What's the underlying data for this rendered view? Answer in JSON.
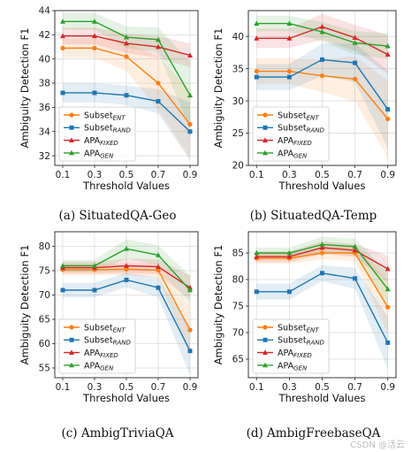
{
  "colors": {
    "Subset_ENT": "#ff7f0e",
    "Subset_RAND": "#1f77b4",
    "APA_FIXED": "#d62728",
    "APA_GEN": "#2ca02c"
  },
  "legend_entries": [
    {
      "key": "Subset_ENT",
      "base": "Subset",
      "sub": "ENT",
      "marker": "circle"
    },
    {
      "key": "Subset_RAND",
      "base": "Subset",
      "sub": "RAND",
      "marker": "square"
    },
    {
      "key": "APA_FIXED",
      "base": "APA",
      "sub": "FIXED",
      "marker": "triangle"
    },
    {
      "key": "APA_GEN",
      "base": "APA",
      "sub": "GEN",
      "marker": "triangle"
    }
  ],
  "watermark": "CSDN @活云",
  "chart_data": [
    {
      "type": "line",
      "caption": "(a) SituatedQA-Geo",
      "xlabel": "Threshold Values",
      "ylabel": "Ambiguity Detection F1",
      "x": [
        0.1,
        0.3,
        0.5,
        0.7,
        0.9
      ],
      "ylim": [
        31.2,
        44
      ],
      "yticks": [
        32,
        34,
        36,
        38,
        40,
        42,
        44
      ],
      "grid": true,
      "legend_position": "lower-left",
      "series": [
        {
          "key": "Subset_ENT",
          "values": [
            40.9,
            40.9,
            40.2,
            38.0,
            34.6
          ],
          "band": [
            0.8,
            0.8,
            1.2,
            2.2,
            2.8
          ]
        },
        {
          "key": "Subset_RAND",
          "values": [
            37.2,
            37.2,
            37.0,
            36.5,
            34.0
          ],
          "band": [
            0.8,
            0.8,
            0.8,
            1.0,
            2.4
          ]
        },
        {
          "key": "APA_FIXED",
          "values": [
            41.9,
            41.9,
            41.3,
            41.0,
            40.3
          ],
          "band": [
            0.7,
            0.7,
            0.8,
            0.9,
            1.0
          ]
        },
        {
          "key": "APA_GEN",
          "values": [
            43.1,
            43.1,
            41.8,
            41.6,
            37.0
          ],
          "band": [
            0.7,
            0.7,
            0.9,
            1.0,
            2.8
          ]
        }
      ]
    },
    {
      "type": "line",
      "caption": "(b) SituatedQA-Temp",
      "xlabel": "Threshold Values",
      "ylabel": "Ambiguity Detection F1",
      "x": [
        0.1,
        0.3,
        0.5,
        0.7,
        0.9
      ],
      "ylim": [
        20,
        44
      ],
      "yticks": [
        20,
        25,
        30,
        35,
        40
      ],
      "grid": true,
      "legend_position": "lower-left",
      "series": [
        {
          "key": "Subset_ENT",
          "values": [
            34.6,
            34.6,
            33.9,
            33.4,
            27.2
          ],
          "band": [
            2.0,
            2.0,
            2.5,
            3.5,
            6.0
          ]
        },
        {
          "key": "Subset_RAND",
          "values": [
            33.7,
            33.7,
            36.4,
            35.9,
            28.7
          ],
          "band": [
            2.0,
            2.0,
            2.5,
            3.0,
            6.0
          ]
        },
        {
          "key": "APA_FIXED",
          "values": [
            39.7,
            39.7,
            41.5,
            39.8,
            37.2
          ],
          "band": [
            1.5,
            1.5,
            2.0,
            2.0,
            3.0
          ]
        },
        {
          "key": "APA_GEN",
          "values": [
            42.0,
            42.0,
            40.7,
            39.0,
            38.5
          ],
          "band": [
            1.2,
            1.2,
            1.5,
            1.8,
            2.0
          ]
        }
      ]
    },
    {
      "type": "line",
      "caption": "(c) AmbigTriviaQA",
      "xlabel": "Threshold Values",
      "ylabel": "Ambiguity Detection F1",
      "x": [
        0.1,
        0.3,
        0.5,
        0.7,
        0.9
      ],
      "ylim": [
        53,
        83
      ],
      "yticks": [
        55,
        60,
        65,
        70,
        75,
        80
      ],
      "grid": true,
      "legend_position": "lower-left",
      "series": [
        {
          "key": "Subset_ENT",
          "values": [
            75.2,
            75.2,
            75.3,
            75.1,
            62.8
          ],
          "band": [
            1.2,
            1.2,
            1.2,
            1.5,
            5.0
          ]
        },
        {
          "key": "Subset_RAND",
          "values": [
            71.0,
            71.0,
            73.1,
            71.5,
            58.5
          ],
          "band": [
            1.5,
            1.5,
            1.5,
            2.0,
            5.0
          ]
        },
        {
          "key": "APA_FIXED",
          "values": [
            75.6,
            75.6,
            76.0,
            75.8,
            71.5
          ],
          "band": [
            1.2,
            1.2,
            1.5,
            1.5,
            2.5
          ]
        },
        {
          "key": "APA_GEN",
          "values": [
            76.0,
            76.0,
            79.5,
            78.2,
            71.0
          ],
          "band": [
            1.2,
            1.2,
            2.0,
            2.0,
            3.0
          ]
        }
      ]
    },
    {
      "type": "line",
      "caption": "(d) AmbigFreebaseQA",
      "xlabel": "Threshold Values",
      "ylabel": "Ambiguity Detection F1",
      "x": [
        0.1,
        0.3,
        0.5,
        0.7,
        0.9
      ],
      "ylim": [
        61.5,
        89
      ],
      "yticks": [
        65,
        70,
        75,
        80,
        85
      ],
      "grid": true,
      "legend_position": "lower-left",
      "series": [
        {
          "key": "Subset_ENT",
          "values": [
            84.0,
            84.0,
            85.0,
            85.0,
            74.8
          ],
          "band": [
            1.0,
            1.0,
            1.2,
            1.5,
            5.0
          ]
        },
        {
          "key": "Subset_RAND",
          "values": [
            77.7,
            77.7,
            81.2,
            80.2,
            68.1
          ],
          "band": [
            1.5,
            1.5,
            1.5,
            2.0,
            5.0
          ]
        },
        {
          "key": "APA_FIXED",
          "values": [
            84.3,
            84.3,
            86.0,
            85.5,
            82.0
          ],
          "band": [
            1.0,
            1.0,
            1.2,
            1.2,
            2.5
          ]
        },
        {
          "key": "APA_GEN",
          "values": [
            85.0,
            85.0,
            86.6,
            86.2,
            78.2
          ],
          "band": [
            1.0,
            1.0,
            1.5,
            1.5,
            3.0
          ]
        }
      ]
    }
  ]
}
